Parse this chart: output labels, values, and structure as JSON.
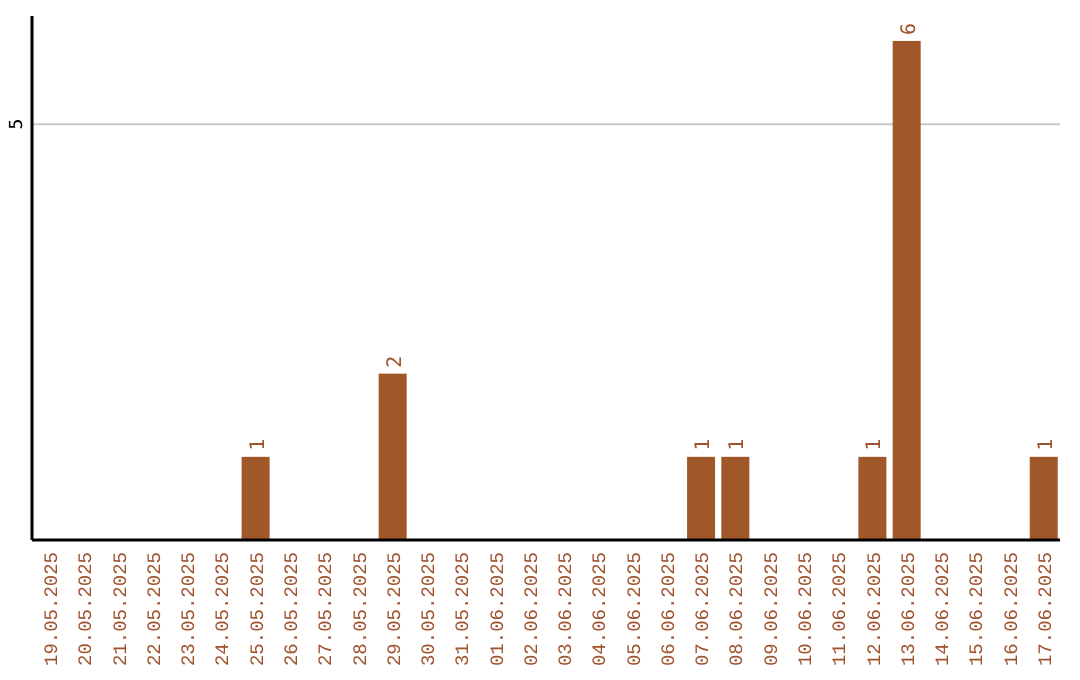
{
  "chart_data": {
    "type": "bar",
    "categories": [
      "19.05.2025",
      "20.05.2025",
      "21.05.2025",
      "22.05.2025",
      "23.05.2025",
      "24.05.2025",
      "25.05.2025",
      "26.05.2025",
      "27.05.2025",
      "28.05.2025",
      "29.05.2025",
      "30.05.2025",
      "31.05.2025",
      "01.06.2025",
      "02.06.2025",
      "03.06.2025",
      "04.06.2025",
      "05.06.2025",
      "06.06.2025",
      "07.06.2025",
      "08.06.2025",
      "09.06.2025",
      "10.06.2025",
      "11.06.2025",
      "12.06.2025",
      "13.06.2025",
      "14.06.2025",
      "15.06.2025",
      "16.06.2025",
      "17.06.2025"
    ],
    "values": [
      0,
      0,
      0,
      0,
      0,
      0,
      1,
      0,
      0,
      0,
      2,
      0,
      0,
      0,
      0,
      0,
      0,
      0,
      0,
      1,
      1,
      0,
      0,
      0,
      1,
      6,
      0,
      0,
      0,
      1
    ],
    "value_labels": [
      null,
      null,
      null,
      null,
      null,
      null,
      "1",
      null,
      null,
      null,
      "2",
      null,
      null,
      null,
      null,
      null,
      null,
      null,
      null,
      "1",
      "1",
      null,
      null,
      null,
      "1",
      "6",
      null,
      null,
      null,
      "1"
    ],
    "color": "#a0572a",
    "ylim": [
      0,
      6.3
    ],
    "yticks": [
      5
    ],
    "grid": "y"
  }
}
